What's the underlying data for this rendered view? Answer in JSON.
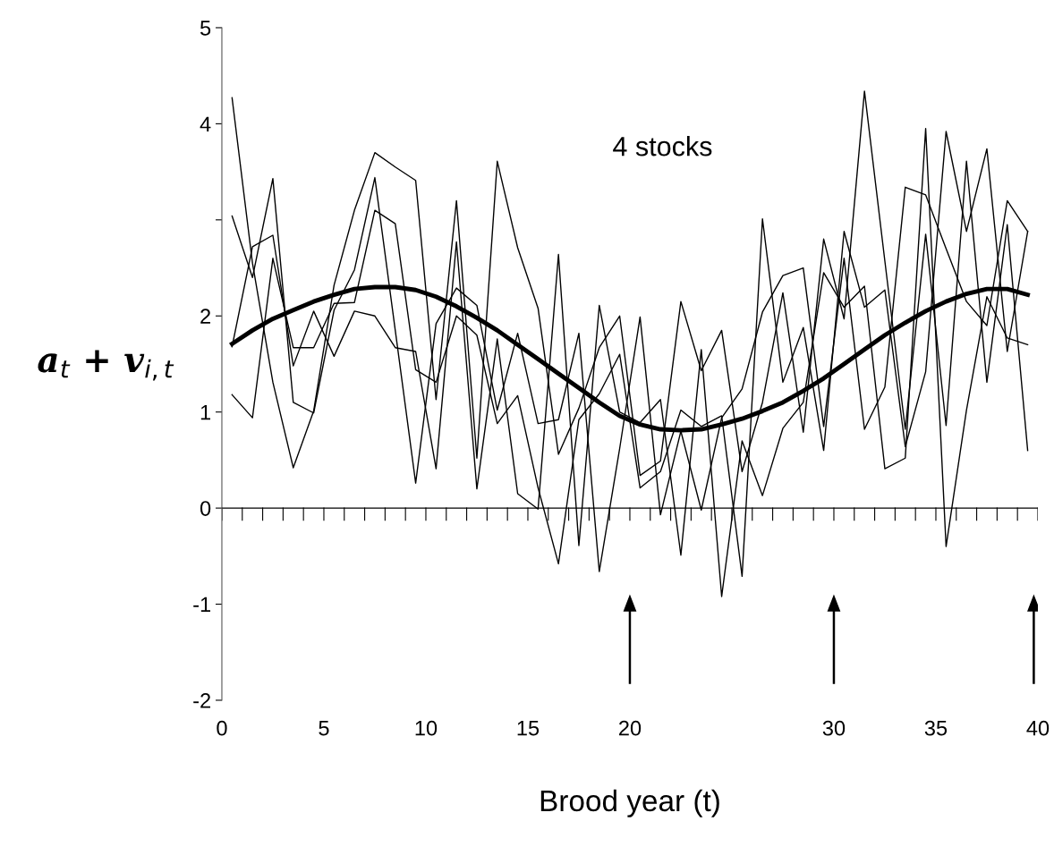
{
  "chart_data": {
    "type": "line",
    "xlabel": "Brood year (t)",
    "ylabel": "a$_{t}$ + v$_{i,t}$",
    "annotations": [
      "4 stocks"
    ],
    "x": [
      0.5,
      1.5,
      2.5,
      3.5,
      4.5,
      5.5,
      6.5,
      7.5,
      8.5,
      9.5,
      10.5,
      11.5,
      12.5,
      13.5,
      14.5,
      15.5,
      16.5,
      17.5,
      18.5,
      19.5,
      20.5,
      21.5,
      22.5,
      23.5,
      24.5,
      25.5,
      26.5,
      27.5,
      28.5,
      29.5,
      30.5,
      31.5,
      32.5,
      33.5,
      34.5,
      35.5,
      36.5,
      37.5,
      38.5,
      39.5
    ],
    "series": [
      {
        "color": "#000000",
        "values": [
          4.27,
          2.55,
          1.31,
          0.42,
          1.01,
          2.32,
          3.1,
          3.7,
          3.55,
          3.41,
          1.13,
          3.2,
          0.52,
          3.61,
          2.71,
          2.08,
          0.56,
          1.04,
          1.67,
          2.0,
          0.34,
          0.49,
          2.15,
          1.43,
          1.85,
          0.38,
          1.1,
          2.24,
          0.79,
          2.8,
          1.97,
          4.34,
          2.57,
          0.82,
          2.85,
          0.86,
          3.61,
          1.31,
          2.95,
          0.6
        ]
      },
      {
        "color": "#000000",
        "values": [
          3.04,
          2.4,
          3.43,
          1.1,
          0.99,
          2.06,
          2.48,
          3.44,
          1.85,
          0.26,
          1.92,
          2.29,
          2.11,
          1.02,
          1.82,
          0.88,
          0.92,
          1.82,
          -0.66,
          0.62,
          1.99,
          -0.07,
          0.8,
          -0.02,
          0.94,
          1.24,
          2.04,
          2.42,
          2.5,
          0.85,
          2.6,
          0.82,
          1.26,
          3.34,
          3.26,
          2.7,
          2.15,
          1.9,
          3.2,
          2.88
        ]
      },
      {
        "color": "#000000",
        "values": [
          1.68,
          2.72,
          2.84,
          1.48,
          2.05,
          1.58,
          2.05,
          2.0,
          1.67,
          1.63,
          0.41,
          2.77,
          0.2,
          1.76,
          0.15,
          -0.01,
          2.64,
          -0.39,
          2.11,
          1.0,
          0.89,
          1.13,
          -0.49,
          1.65,
          -0.92,
          0.7,
          0.13,
          0.83,
          1.1,
          2.45,
          2.09,
          2.31,
          0.41,
          0.52,
          3.95,
          -0.4,
          1.02,
          2.2,
          1.77,
          1.7
        ]
      },
      {
        "color": "#000000",
        "values": [
          1.18,
          0.94,
          2.6,
          1.67,
          1.67,
          2.13,
          2.14,
          3.1,
          2.96,
          1.44,
          1.31,
          2.0,
          1.8,
          0.88,
          1.17,
          0.21,
          -0.58,
          0.92,
          1.19,
          1.6,
          0.21,
          0.38,
          1.02,
          0.85,
          0.96,
          -0.71,
          3.01,
          1.31,
          1.88,
          0.6,
          2.88,
          2.09,
          2.27,
          0.64,
          1.42,
          3.92,
          2.88,
          3.74,
          1.63,
          2.88
        ]
      },
      {
        "color": "#000000",
        "x": [
          0.5,
          1.5,
          2.5,
          3.5,
          4.5,
          5.5,
          6.5,
          7.5,
          8.5,
          9.5,
          10.5,
          11.5,
          12.5,
          13.5,
          14.5,
          15.5,
          16.5,
          17.5,
          18.5,
          19.5,
          20.5,
          21.5,
          22.5,
          23.5,
          24.5,
          25.5,
          26.5,
          27.5,
          28.5,
          29.5,
          30.5,
          31.5,
          32.5,
          33.5,
          34.5,
          35.5,
          36.5,
          37.5,
          38.5,
          39.5
        ],
        "values": [
          1.71,
          1.85,
          1.97,
          2.06,
          2.15,
          2.22,
          2.28,
          2.3,
          2.3,
          2.27,
          2.2,
          2.1,
          1.98,
          1.85,
          1.7,
          1.55,
          1.4,
          1.25,
          1.1,
          0.96,
          0.87,
          0.82,
          0.81,
          0.82,
          0.87,
          0.93,
          1.01,
          1.1,
          1.22,
          1.35,
          1.5,
          1.65,
          1.8,
          1.93,
          2.05,
          2.15,
          2.23,
          2.28,
          2.28,
          2.22
        ]
      }
    ],
    "xlim": [
      0,
      40
    ],
    "xticks": [
      0,
      5,
      10,
      15,
      20,
      30,
      35,
      40
    ],
    "ref_lines": [
      {
        "axis": "y",
        "value": 0,
        "color": "#000000"
      }
    ],
    "ylim": [
      -2,
      5
    ],
    "yticks": [
      -2,
      -1,
      0,
      1,
      2,
      {
        "value": 3,
        "label": null
      },
      4,
      5
    ],
    "grid": false,
    "legend": false,
    "marker": "none",
    "line_style": "solid"
  }
}
